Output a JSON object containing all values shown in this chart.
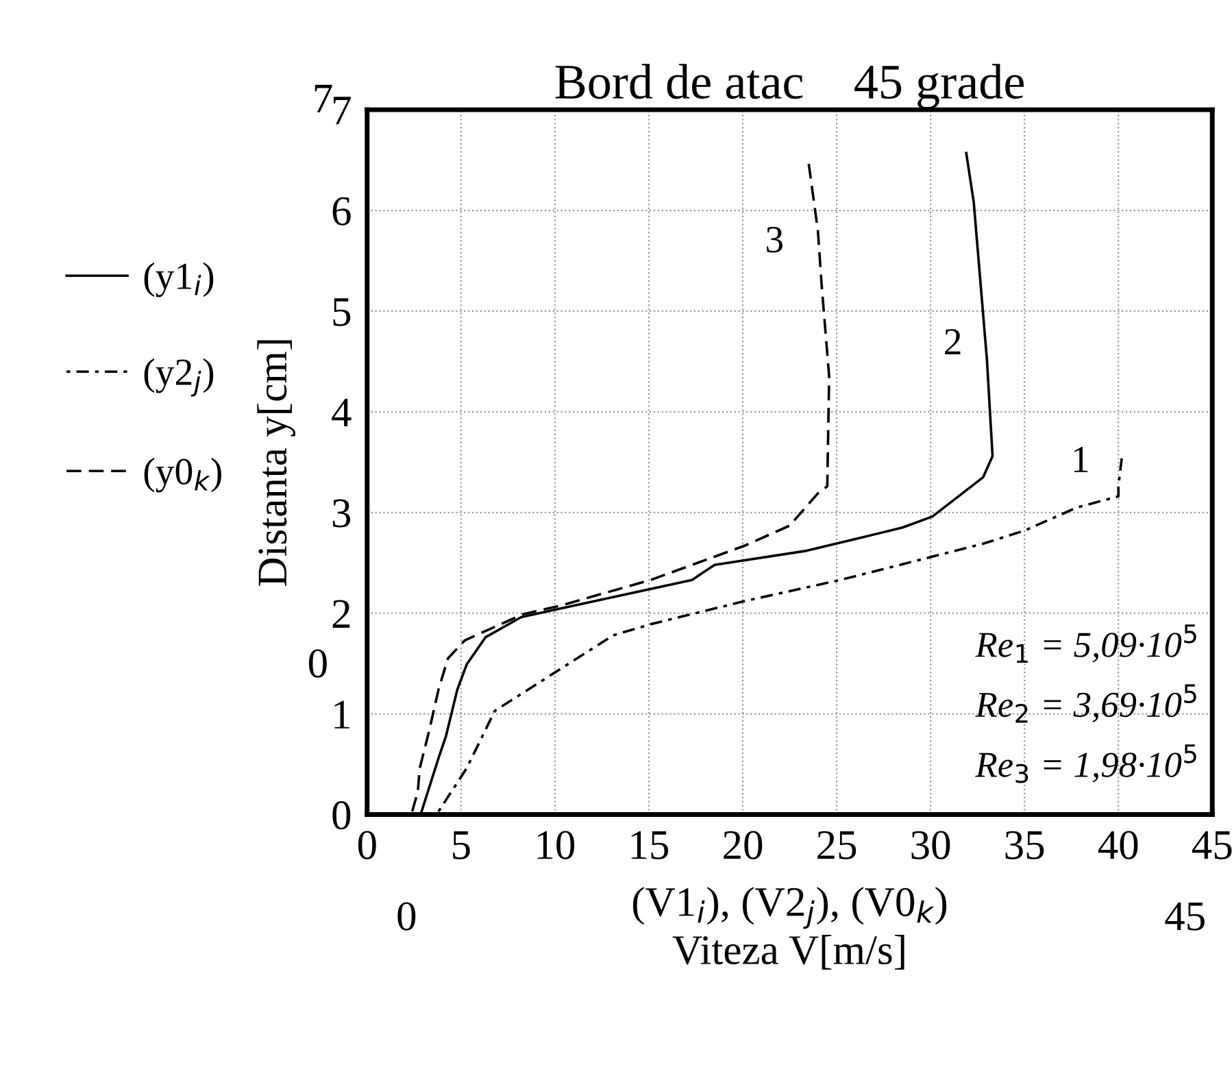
{
  "chart_data": {
    "type": "line",
    "title": "Bord de atac    45 grade",
    "xlabel": "(V1$_{i}$), (V2$_{j}$), (V0$_{k}$)\nViteza V[m/s]",
    "ylabel": "Distanta y[cm]",
    "xlim": [
      0,
      45
    ],
    "xticks": [
      0,
      5,
      10,
      15,
      20,
      25,
      30,
      35,
      40,
      45
    ],
    "ylim": [
      0,
      7
    ],
    "yticks": [
      0,
      1,
      2,
      3,
      4,
      5,
      6,
      7
    ],
    "grid": true,
    "legend": "left",
    "series": [
      {
        "name": "(y1$_{i}$)",
        "color": "#000000",
        "line_style": "solid",
        "x": [
          2.9,
          3.8,
          4.2,
          4.8,
          5.3,
          6.3,
          8.2,
          9.9,
          17.3,
          18.5,
          23.4,
          26.3,
          28.5,
          30.1,
          32.8,
          33.3,
          33.0,
          32.3,
          31.9
        ],
        "values": [
          0.03,
          0.56,
          0.78,
          1.24,
          1.49,
          1.76,
          1.96,
          2.03,
          2.33,
          2.48,
          2.62,
          2.75,
          2.85,
          2.96,
          3.35,
          3.56,
          4.52,
          6.08,
          6.57
        ]
      },
      {
        "name": "(y2$_{j}$)",
        "color": "#000000",
        "line_style": "dotted",
        "x": [
          3.8,
          5.3,
          6.8,
          13.1,
          15.1,
          20.1,
          25.2,
          32.8,
          35.0,
          37.8,
          40.0,
          40.0,
          40.2
        ],
        "values": [
          0.03,
          0.46,
          1.03,
          1.78,
          1.89,
          2.12,
          2.33,
          2.69,
          2.82,
          3.05,
          3.16,
          3.26,
          3.57
        ]
      },
      {
        "name": "(y0$_{k}$)",
        "color": "#000000",
        "line_style": "dashed",
        "x": [
          2.4,
          2.7,
          2.8,
          3.3,
          3.8,
          4.3,
          5.2,
          8.3,
          10.2,
          15.1,
          20.1,
          22.5,
          24.0,
          24.5,
          24.6,
          24.2,
          24.0,
          23.5
        ],
        "values": [
          0.03,
          0.23,
          0.46,
          0.83,
          1.24,
          1.55,
          1.73,
          1.99,
          2.07,
          2.33,
          2.67,
          2.87,
          3.19,
          3.26,
          4.35,
          5.26,
          5.8,
          6.48
        ]
      }
    ],
    "annotations": [
      "1",
      "2",
      "3",
      "Re$_{1}$ = 5,09·10$^{5}$",
      "Re$_{2}$ = 3,69·10$^{5}$",
      "Re$_{3}$ = 1,98·10$^{5}$",
      "7",
      "0",
      "0",
      "45"
    ]
  }
}
